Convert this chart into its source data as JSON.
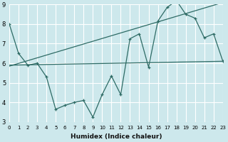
{
  "xlabel": "Humidex (Indice chaleur)",
  "bg_color": "#cde8ec",
  "grid_color": "#ffffff",
  "line_color": "#2e6b65",
  "xlim": [
    0,
    23
  ],
  "ylim": [
    3,
    9
  ],
  "yticks": [
    3,
    4,
    5,
    6,
    7,
    8,
    9
  ],
  "xticks": [
    0,
    1,
    2,
    3,
    4,
    5,
    6,
    7,
    8,
    9,
    10,
    11,
    12,
    13,
    14,
    15,
    16,
    17,
    18,
    19,
    20,
    21,
    22,
    23
  ],
  "jagged_x": [
    0,
    1,
    2,
    3,
    4,
    5,
    6,
    7,
    8,
    9,
    10,
    11,
    12,
    13,
    14,
    15,
    16,
    17,
    18,
    19,
    20,
    21,
    22,
    23
  ],
  "jagged_y": [
    8.0,
    6.5,
    5.9,
    6.0,
    5.3,
    3.65,
    3.85,
    4.0,
    4.1,
    3.25,
    4.4,
    5.35,
    4.4,
    7.25,
    7.5,
    5.8,
    8.15,
    8.85,
    9.2,
    8.5,
    8.3,
    7.3,
    7.5,
    6.1
  ],
  "steep_line_x": [
    0,
    23
  ],
  "steep_line_y": [
    5.85,
    9.1
  ],
  "flat_line_x": [
    0,
    23
  ],
  "flat_line_y": [
    5.9,
    6.1
  ]
}
